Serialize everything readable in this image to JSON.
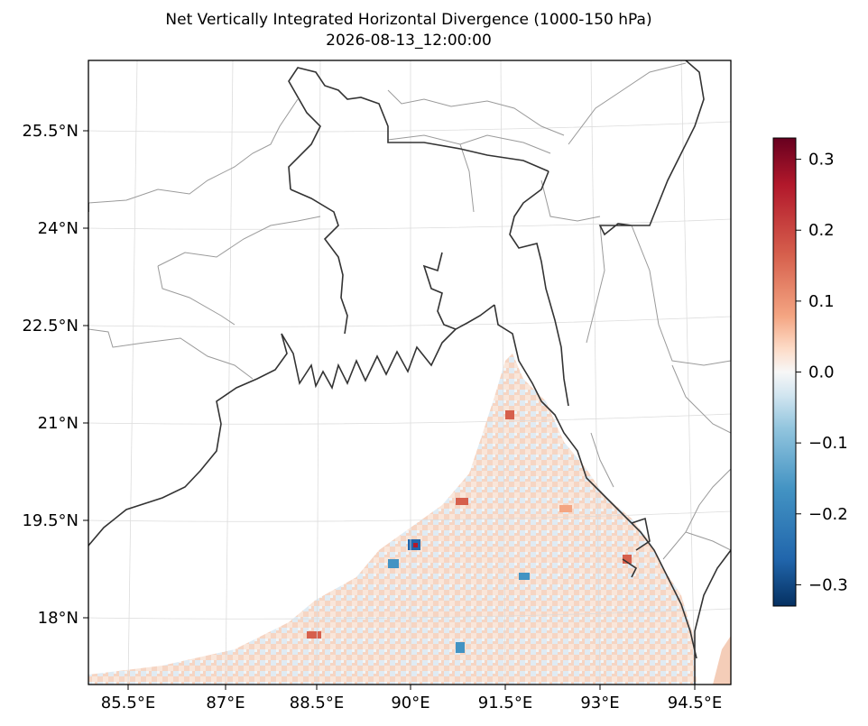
{
  "title": "Net Vertically Integrated Horizontal Divergence (1000-150 hPa)",
  "subtitle": "2026-08-13_12:00:00",
  "map": {
    "region": "Bay of Bengal / Bangladesh",
    "lon_ticks": [
      "85.5°E",
      "87°E",
      "88.5°E",
      "90°E",
      "91.5°E",
      "93°E",
      "94.5°E"
    ],
    "lat_ticks": [
      "25.5°N",
      "24°N",
      "22.5°N",
      "21°N",
      "19.5°N",
      "18°N"
    ],
    "gridlines": true
  },
  "colorbar": {
    "colormap": "RdBu_r",
    "range": [
      -0.33,
      0.33
    ],
    "ticks": [
      "0.3",
      "0.2",
      "0.1",
      "0.0",
      "−0.1",
      "−0.2",
      "−0.3"
    ],
    "colors": {
      "high": "#67001f",
      "mid": "#f7f7f7",
      "low": "#053061"
    }
  }
}
